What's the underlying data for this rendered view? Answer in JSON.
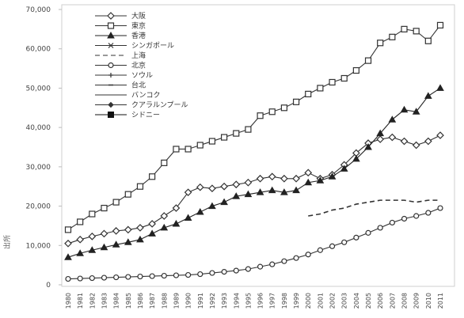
{
  "chart_data": {
    "type": "line",
    "title": "",
    "xlabel": "",
    "ylabel": "",
    "ylim": [
      0,
      70000
    ],
    "yticks": [
      0,
      10000,
      20000,
      30000,
      40000,
      50000,
      60000,
      70000
    ],
    "ytick_labels": [
      "0",
      "10,000",
      "20,000",
      "30,000",
      "40,000",
      "50,000",
      "60,000",
      "70,000"
    ],
    "x": [
      1980,
      1981,
      1982,
      1983,
      1984,
      1985,
      1986,
      1987,
      1988,
      1989,
      1990,
      1991,
      1992,
      1993,
      1994,
      1995,
      1996,
      1997,
      1998,
      1999,
      2000,
      2001,
      2002,
      2003,
      2004,
      2005,
      2006,
      2007,
      2008,
      2009,
      2010,
      2011
    ],
    "xtick_labels": [
      "1980",
      "1981",
      "1982",
      "1983",
      "1984",
      "1985",
      "1986",
      "1987",
      "1988",
      "1989",
      "1990",
      "1991",
      "1992",
      "1993",
      "1994",
      "1995",
      "1996",
      "1997",
      "1998",
      "1999",
      "2000",
      "2001",
      "2002",
      "2003",
      "2004",
      "2005",
      "2006",
      "2007",
      "2008",
      "2009",
      "2010",
      "2011"
    ],
    "grid": false,
    "legend_position": "top-left",
    "series": [
      {
        "name": "大阪",
        "color": "#333333",
        "marker": "diamond-open",
        "dash": "",
        "values": [
          10500,
          11500,
          12300,
          13000,
          13700,
          14000,
          14500,
          15500,
          17500,
          19500,
          23500,
          24800,
          24500,
          25000,
          25500,
          26000,
          27000,
          27500,
          27000,
          27000,
          28500,
          27000,
          28000,
          30500,
          33500,
          36000,
          37000,
          37500,
          36500,
          35500,
          36500,
          38000
        ]
      },
      {
        "name": "東京",
        "color": "#333333",
        "marker": "square-open",
        "dash": "",
        "values": [
          14000,
          16000,
          18000,
          19500,
          21000,
          23000,
          25000,
          27500,
          31000,
          34500,
          34500,
          35500,
          36500,
          37500,
          38500,
          39500,
          43000,
          44000,
          45000,
          46500,
          48500,
          50000,
          51500,
          52500,
          54500,
          57000,
          61500,
          63000,
          65000,
          64500,
          62000,
          66000
        ]
      },
      {
        "name": "香港",
        "color": "#222222",
        "marker": "triangle",
        "dash": "",
        "values": [
          7000,
          8000,
          8800,
          9500,
          10200,
          10800,
          11500,
          13000,
          14500,
          15500,
          17000,
          18500,
          20000,
          21000,
          22500,
          23000,
          23500,
          24000,
          23500,
          24000,
          26000,
          26500,
          27500,
          29500,
          32000,
          35000,
          38500,
          42000,
          44500,
          44000,
          48000,
          50000
        ]
      },
      {
        "name": "シンガポール",
        "color": "#333333",
        "marker": "x",
        "dash": "",
        "values": [
          null,
          null,
          null,
          null,
          null,
          null,
          null,
          null,
          null,
          null,
          null,
          null,
          null,
          null,
          null,
          null,
          null,
          null,
          null,
          null,
          null,
          null,
          null,
          null,
          null,
          null,
          null,
          null,
          null,
          null,
          null,
          null
        ]
      },
      {
        "name": "上海",
        "color": "#333333",
        "marker": "none",
        "dash": "6,4",
        "values": [
          null,
          null,
          null,
          null,
          null,
          null,
          null,
          null,
          null,
          null,
          null,
          null,
          null,
          null,
          null,
          null,
          null,
          null,
          null,
          null,
          17500,
          18000,
          19000,
          19500,
          20500,
          21000,
          21500,
          21500,
          21500,
          21000,
          21500,
          21500
        ]
      },
      {
        "name": "北京",
        "color": "#333333",
        "marker": "circle-open",
        "dash": "",
        "values": [
          1500,
          1600,
          1700,
          1800,
          1900,
          2000,
          2100,
          2200,
          2300,
          2400,
          2500,
          2700,
          3000,
          3300,
          3600,
          4000,
          4600,
          5200,
          6000,
          6800,
          7700,
          8800,
          9800,
          10800,
          12000,
          13200,
          14500,
          15800,
          16800,
          17500,
          18300,
          19500
        ]
      },
      {
        "name": "ソウル",
        "color": "#333333",
        "marker": "plus",
        "dash": "",
        "values": [
          null,
          null,
          null,
          null,
          null,
          null,
          null,
          null,
          null,
          null,
          null,
          null,
          null,
          null,
          null,
          null,
          null,
          null,
          null,
          null,
          null,
          null,
          null,
          null,
          null,
          null,
          null,
          null,
          null,
          null,
          null,
          null
        ]
      },
      {
        "name": "台北",
        "color": "#333333",
        "marker": "dash",
        "dash": "",
        "values": [
          null,
          null,
          null,
          null,
          null,
          null,
          null,
          null,
          null,
          null,
          null,
          null,
          null,
          null,
          null,
          null,
          null,
          null,
          null,
          null,
          null,
          null,
          null,
          null,
          null,
          null,
          null,
          null,
          null,
          null,
          null,
          null
        ]
      },
      {
        "name": "バンコク",
        "color": "#333333",
        "marker": "none",
        "dash": "",
        "values": [
          null,
          null,
          null,
          null,
          null,
          null,
          null,
          null,
          null,
          null,
          null,
          null,
          null,
          null,
          null,
          null,
          null,
          null,
          null,
          null,
          null,
          null,
          null,
          null,
          null,
          null,
          null,
          null,
          null,
          null,
          null,
          null
        ]
      },
      {
        "name": "クアラルンプール",
        "color": "#333333",
        "marker": "diamond",
        "dash": "",
        "values": [
          null,
          null,
          null,
          null,
          null,
          null,
          null,
          null,
          null,
          null,
          null,
          null,
          null,
          null,
          null,
          null,
          null,
          null,
          null,
          null,
          null,
          null,
          null,
          null,
          null,
          null,
          null,
          null,
          null,
          null,
          null,
          null
        ]
      },
      {
        "name": "シドニー",
        "color": "#111111",
        "marker": "square",
        "dash": "",
        "values": [
          null,
          null,
          null,
          null,
          null,
          null,
          null,
          null,
          null,
          null,
          null,
          null,
          null,
          null,
          null,
          null,
          null,
          null,
          null,
          null,
          null,
          null,
          null,
          null,
          null,
          null,
          null,
          null,
          null,
          null,
          null,
          null
        ]
      }
    ]
  },
  "side_text": "出所"
}
